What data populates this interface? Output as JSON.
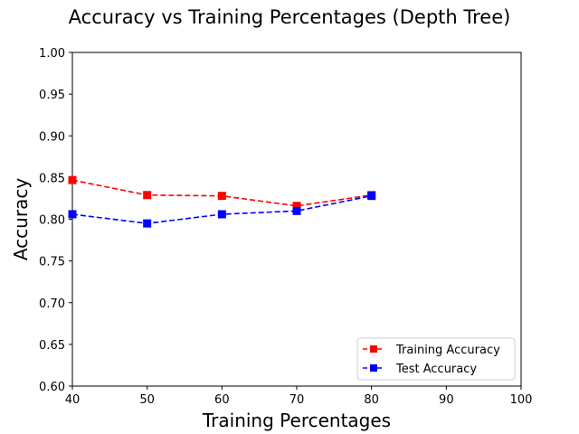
{
  "chart_data": {
    "type": "line",
    "title": "Accuracy vs Training Percentages (Depth Tree)",
    "xlabel": "Training Percentages",
    "ylabel": "Accuracy",
    "xlim": [
      40,
      100
    ],
    "ylim": [
      0.6,
      1.0
    ],
    "x_ticks": [
      40,
      50,
      60,
      70,
      80,
      90,
      100
    ],
    "y_ticks": [
      "0.60",
      "0.65",
      "0.70",
      "0.75",
      "0.80",
      "0.85",
      "0.90",
      "0.95",
      "1.00"
    ],
    "grid": false,
    "legend_position": "lower-right",
    "x": [
      40,
      50,
      60,
      70,
      80
    ],
    "series": [
      {
        "name": "Training Accuracy",
        "color": "#ff0000",
        "values": [
          0.847,
          0.829,
          0.828,
          0.816,
          0.829
        ]
      },
      {
        "name": "Test Accuracy",
        "color": "#0000ff",
        "values": [
          0.806,
          0.795,
          0.806,
          0.81,
          0.828
        ]
      }
    ]
  }
}
